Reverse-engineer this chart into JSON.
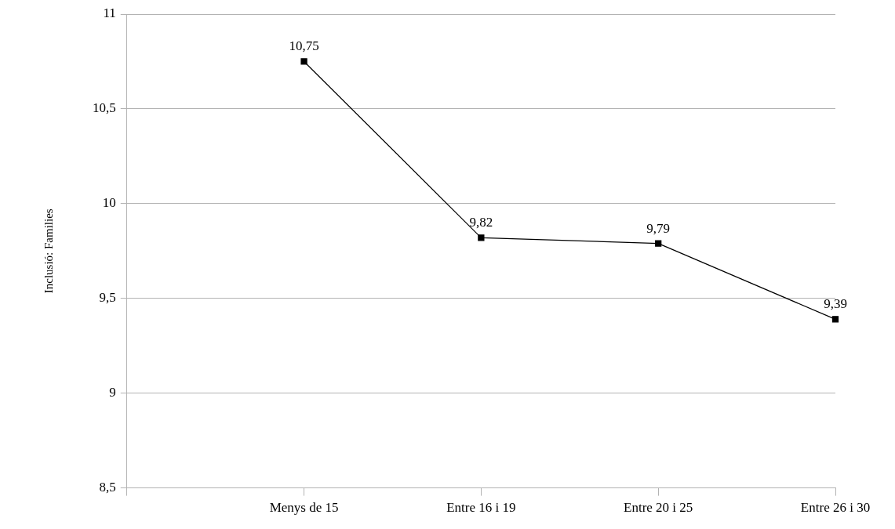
{
  "chart_data": {
    "type": "line",
    "ylabel": "Inclusió: Families",
    "categories": [
      null,
      "Menys de 15",
      "Entre 16 i 19",
      "Entre 20 i 25",
      "Entre 26 i 30"
    ],
    "series": [
      {
        "color": "#000000",
        "values": [
          null,
          10.75,
          9.82,
          9.79,
          9.39
        ],
        "value_labels": [
          null,
          "10,75",
          "9,82",
          "9,79",
          "9,39"
        ]
      }
    ],
    "ylim": [
      8.5,
      11
    ],
    "yticks": [
      {
        "value": 8.5,
        "label": "8,5"
      },
      {
        "value": 9,
        "label": "9"
      },
      {
        "value": 9.5,
        "label": "9,5"
      },
      {
        "value": 10,
        "label": "10"
      },
      {
        "value": 10.5,
        "label": "10,5"
      },
      {
        "value": 11,
        "label": "11"
      }
    ],
    "grid": "y",
    "legend": false,
    "marker": "square",
    "line_style": "solid"
  }
}
